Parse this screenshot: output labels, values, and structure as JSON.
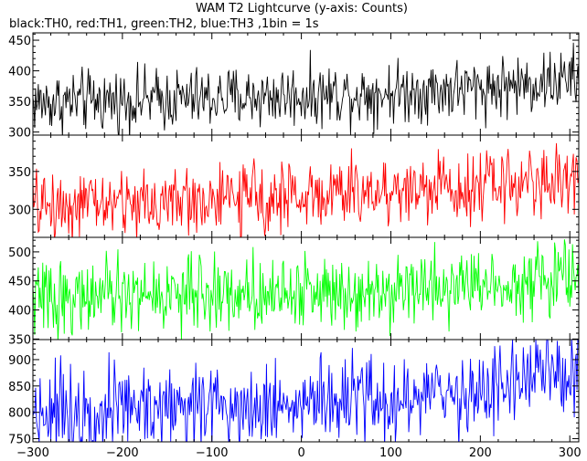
{
  "chart_data": {
    "type": "line",
    "title": "WAM T2 Lightcurve (y-axis: Counts)",
    "subtitle": "black:TH0, red:TH1, green:TH2, blue:TH3 ,1bin = 1s",
    "xlabel": "",
    "ylabel": "",
    "xlim": [
      -300,
      310
    ],
    "x_ticks": [
      -300,
      -200,
      -100,
      0,
      100,
      200,
      300
    ],
    "x_tick_labels": [
      "−300",
      "−200",
      "−100",
      "0",
      "100",
      "200",
      "300"
    ],
    "bin_seconds": 1,
    "grid": false,
    "panels": [
      {
        "name": "TH0",
        "color": "#000000",
        "ylim": [
          295,
          462
        ],
        "y_ticks": [
          300,
          350,
          400,
          450
        ],
        "y_tick_labels": [
          "300",
          "350",
          "400",
          "450"
        ],
        "trend_x": [
          -300,
          -200,
          -100,
          0,
          100,
          200,
          250,
          300,
          310
        ],
        "trend_y": [
          348,
          352,
          355,
          360,
          365,
          372,
          378,
          385,
          390
        ],
        "noise_amplitude": 28
      },
      {
        "name": "TH1",
        "color": "#ff0000",
        "ylim": [
          263,
          398
        ],
        "y_ticks": [
          300,
          350
        ],
        "y_tick_labels": [
          "300",
          "350"
        ],
        "trend_x": [
          -300,
          -200,
          -100,
          0,
          100,
          200,
          300,
          310
        ],
        "trend_y": [
          305,
          308,
          312,
          318,
          325,
          332,
          340,
          342
        ],
        "noise_amplitude": 25
      },
      {
        "name": "TH2",
        "color": "#00ff00",
        "ylim": [
          349,
          525
        ],
        "y_ticks": [
          350,
          400,
          450,
          500
        ],
        "y_tick_labels": [
          "350",
          "400",
          "450",
          "500"
        ],
        "trend_x": [
          -300,
          -200,
          -100,
          0,
          100,
          200,
          300,
          310
        ],
        "trend_y": [
          420,
          425,
          428,
          432,
          438,
          445,
          455,
          458
        ],
        "noise_amplitude": 35
      },
      {
        "name": "TH3",
        "color": "#0000ff",
        "ylim": [
          744,
          938
        ],
        "y_ticks": [
          750,
          800,
          850,
          900
        ],
        "y_tick_labels": [
          "750",
          "800",
          "850",
          "900"
        ],
        "trend_x": [
          -300,
          -200,
          -100,
          0,
          100,
          150,
          200,
          250,
          300,
          310
        ],
        "trend_y": [
          805,
          810,
          815,
          818,
          822,
          828,
          840,
          865,
          875,
          880
        ],
        "noise_amplitude": 45
      }
    ]
  }
}
